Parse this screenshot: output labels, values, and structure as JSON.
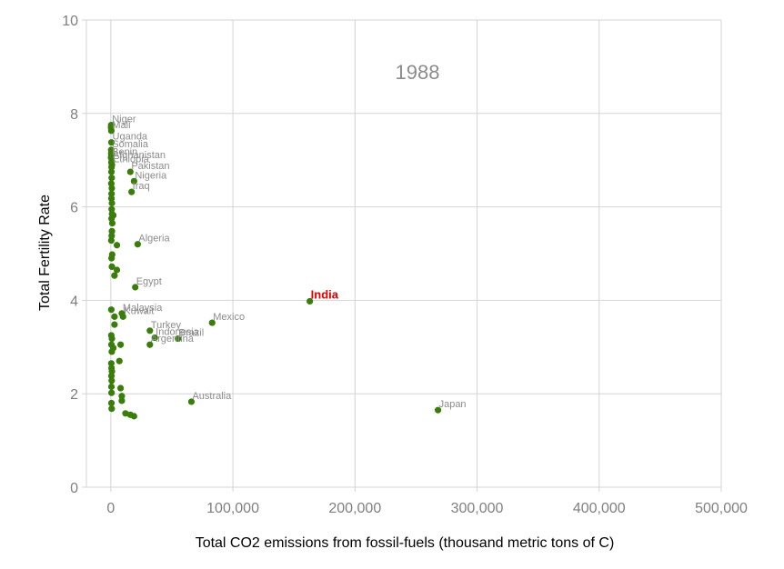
{
  "chart_data": {
    "type": "scatter",
    "title": "",
    "annotation": "1988",
    "xlabel": "Total CO2 emissions from fossil-fuels (thousand metric tons of C)",
    "ylabel": "Total Fertility Rate",
    "xlim": [
      -20000,
      500000
    ],
    "ylim": [
      0,
      10
    ],
    "x_ticks": [
      0,
      100000,
      200000,
      300000,
      400000,
      500000
    ],
    "x_tick_labels": [
      "0",
      "100,000",
      "200,000",
      "300,000",
      "400,000",
      "500,000"
    ],
    "y_ticks": [
      0,
      2,
      4,
      6,
      8,
      10
    ],
    "y_tick_labels": [
      "0",
      "2",
      "4",
      "6",
      "8",
      "10"
    ],
    "grid": true,
    "colors": {
      "point": "#3a7d0a",
      "label": "#8c8c8c",
      "highlight": "#e00000",
      "grid": "#d4d4d4",
      "axis_text": "#7f7f7f"
    },
    "labeled_points": [
      {
        "name": "Niger",
        "x": 300,
        "y": 7.75,
        "highlight": false
      },
      {
        "name": "Mali",
        "x": 400,
        "y": 7.63,
        "highlight": false
      },
      {
        "name": "Uganda",
        "x": 500,
        "y": 7.38,
        "highlight": false
      },
      {
        "name": "Somalia",
        "x": 300,
        "y": 7.22,
        "highlight": false
      },
      {
        "name": "Benin",
        "x": 200,
        "y": 7.05,
        "highlight": false
      },
      {
        "name": "Afghanistan",
        "x": 800,
        "y": 6.98,
        "highlight": false
      },
      {
        "name": "Ethiopia",
        "x": 900,
        "y": 6.9,
        "highlight": false
      },
      {
        "name": "Pakistan",
        "x": 16000,
        "y": 6.75,
        "highlight": false
      },
      {
        "name": "Nigeria",
        "x": 19000,
        "y": 6.55,
        "highlight": false
      },
      {
        "name": "Iraq",
        "x": 17000,
        "y": 6.32,
        "highlight": false
      },
      {
        "name": "Algeria",
        "x": 22000,
        "y": 5.2,
        "highlight": false
      },
      {
        "name": "Egypt",
        "x": 20000,
        "y": 4.28,
        "highlight": false
      },
      {
        "name": "India",
        "x": 163000,
        "y": 3.98,
        "highlight": true
      },
      {
        "name": "Malaysia",
        "x": 9000,
        "y": 3.72,
        "highlight": false
      },
      {
        "name": "Kuwait",
        "x": 10000,
        "y": 3.65,
        "highlight": false
      },
      {
        "name": "Mexico",
        "x": 83000,
        "y": 3.52,
        "highlight": false
      },
      {
        "name": "Turkey",
        "x": 32000,
        "y": 3.35,
        "highlight": false
      },
      {
        "name": "Indonesia",
        "x": 36000,
        "y": 3.2,
        "highlight": false
      },
      {
        "name": "Brazil",
        "x": 55000,
        "y": 3.18,
        "highlight": false
      },
      {
        "name": "Argentina",
        "x": 32000,
        "y": 3.05,
        "highlight": false
      },
      {
        "name": "Australia",
        "x": 66000,
        "y": 1.83,
        "highlight": false
      },
      {
        "name": "Japan",
        "x": 268000,
        "y": 1.65,
        "highlight": false
      }
    ],
    "unlabeled_points": [
      {
        "x": 200,
        "y": 7.7
      },
      {
        "x": 300,
        "y": 7.15
      },
      {
        "x": 400,
        "y": 7.1
      },
      {
        "x": 500,
        "y": 6.95
      },
      {
        "x": 600,
        "y": 6.85
      },
      {
        "x": 500,
        "y": 6.75
      },
      {
        "x": 700,
        "y": 6.62
      },
      {
        "x": 400,
        "y": 6.5
      },
      {
        "x": 800,
        "y": 6.4
      },
      {
        "x": 600,
        "y": 6.28
      },
      {
        "x": 500,
        "y": 6.18
      },
      {
        "x": 900,
        "y": 6.08
      },
      {
        "x": 700,
        "y": 5.95
      },
      {
        "x": 1000,
        "y": 5.85
      },
      {
        "x": 2000,
        "y": 5.82
      },
      {
        "x": 600,
        "y": 5.75
      },
      {
        "x": 1200,
        "y": 5.65
      },
      {
        "x": 900,
        "y": 5.48
      },
      {
        "x": 700,
        "y": 5.38
      },
      {
        "x": 400,
        "y": 5.28
      },
      {
        "x": 5000,
        "y": 5.18
      },
      {
        "x": 1100,
        "y": 4.98
      },
      {
        "x": 600,
        "y": 4.9
      },
      {
        "x": 900,
        "y": 4.72
      },
      {
        "x": 5000,
        "y": 4.65
      },
      {
        "x": 3000,
        "y": 4.53
      },
      {
        "x": 400,
        "y": 3.8
      },
      {
        "x": 3000,
        "y": 3.65
      },
      {
        "x": 3000,
        "y": 3.48
      },
      {
        "x": 400,
        "y": 3.25
      },
      {
        "x": 900,
        "y": 3.18
      },
      {
        "x": 500,
        "y": 3.05
      },
      {
        "x": 8000,
        "y": 3.05
      },
      {
        "x": 2000,
        "y": 2.98
      },
      {
        "x": 800,
        "y": 2.9
      },
      {
        "x": 7000,
        "y": 2.7
      },
      {
        "x": 400,
        "y": 2.65
      },
      {
        "x": 600,
        "y": 2.55
      },
      {
        "x": 900,
        "y": 2.48
      },
      {
        "x": 500,
        "y": 2.38
      },
      {
        "x": 700,
        "y": 2.28
      },
      {
        "x": 500,
        "y": 2.15
      },
      {
        "x": 8000,
        "y": 2.12
      },
      {
        "x": 600,
        "y": 2.02
      },
      {
        "x": 9000,
        "y": 1.95
      },
      {
        "x": 9000,
        "y": 1.85
      },
      {
        "x": 500,
        "y": 1.8
      },
      {
        "x": 700,
        "y": 1.68
      },
      {
        "x": 12000,
        "y": 1.58
      },
      {
        "x": 16000,
        "y": 1.55
      },
      {
        "x": 19000,
        "y": 1.52
      }
    ]
  }
}
